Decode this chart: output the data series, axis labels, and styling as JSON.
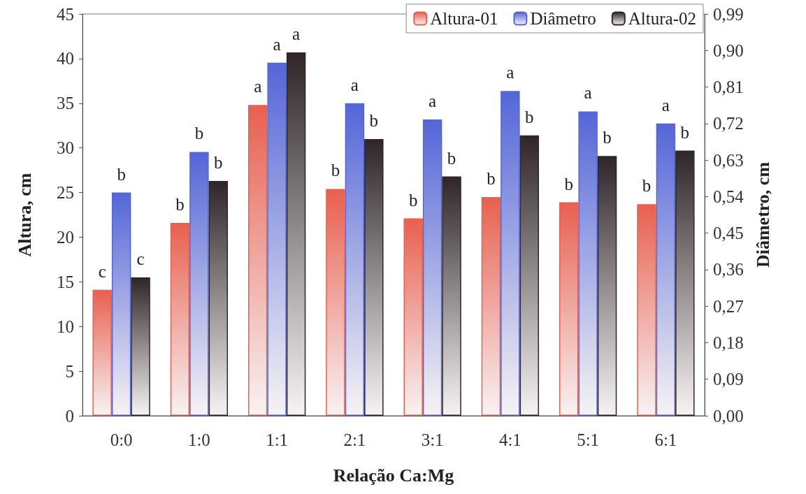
{
  "chart_data": {
    "type": "bar",
    "xlabel": "Relação Ca:Mg",
    "ylabel": "Altura, cm",
    "y2label": "Diâmetro, cm",
    "categories": [
      "0:0",
      "1:0",
      "1:1",
      "2:1",
      "3:1",
      "4:1",
      "5:1",
      "6:1"
    ],
    "series": [
      {
        "name": "Altura-01",
        "color": "#e8604f",
        "values": [
          14.1,
          21.6,
          34.8,
          25.4,
          22.1,
          24.5,
          23.9,
          23.7
        ],
        "value_labels": [
          "c",
          "b",
          "a",
          "b",
          "b",
          "b",
          "b",
          "b"
        ]
      },
      {
        "name": "Diâmetro",
        "color": "#5466d8",
        "axis": "y2",
        "values": [
          0.55,
          0.65,
          0.87,
          0.77,
          0.73,
          0.8,
          0.75,
          0.72
        ],
        "value_labels": [
          "b",
          "b",
          "a",
          "a",
          "a",
          "a",
          "a",
          "a"
        ]
      },
      {
        "name": "Altura-02",
        "color": "#2e2628",
        "values": [
          15.5,
          26.3,
          40.7,
          31.0,
          26.8,
          31.4,
          29.1,
          29.7
        ],
        "value_labels": [
          "c",
          "b",
          "a",
          "b",
          "b",
          "b",
          "b",
          "b"
        ]
      }
    ],
    "ylim": [
      0,
      45
    ],
    "yticks": [
      0,
      5,
      10,
      15,
      20,
      25,
      30,
      35,
      40,
      45
    ],
    "y2lim": [
      0,
      0.99
    ],
    "y2ticks": [
      {
        "value": 0,
        "label": "0,00"
      },
      {
        "value": 0.09,
        "label": "0,09"
      },
      {
        "value": 0.18,
        "label": "0,18"
      },
      {
        "value": 0.27,
        "label": "0,27"
      },
      {
        "value": 0.36,
        "label": "0,36"
      },
      {
        "value": 0.45,
        "label": "0,45"
      },
      {
        "value": 0.54,
        "label": "0,54"
      },
      {
        "value": 0.63,
        "label": "0,63"
      },
      {
        "value": 0.72,
        "label": "0,72"
      },
      {
        "value": 0.81,
        "label": "0,81"
      },
      {
        "value": 0.9,
        "label": "0,90"
      },
      {
        "value": 0.99,
        "label": "0,99"
      }
    ],
    "grid": false,
    "legend": "top right"
  }
}
